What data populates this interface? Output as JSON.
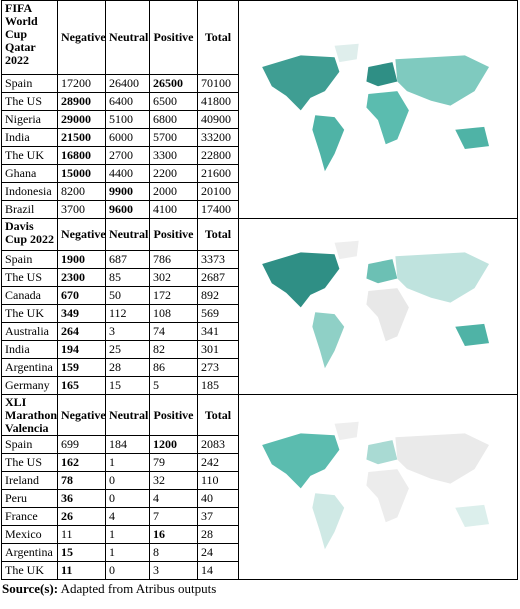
{
  "sections": [
    {
      "title": "FIFA World Cup Qatar 2022",
      "columns": [
        "Negative",
        "Neutral",
        "Positive",
        "Total"
      ],
      "rows": [
        {
          "country": "Spain",
          "values": [
            17200,
            26400,
            26500,
            70100
          ],
          "bold": 2
        },
        {
          "country": "The US",
          "values": [
            28900,
            6400,
            6500,
            41800
          ],
          "bold": 0
        },
        {
          "country": "Nigeria",
          "values": [
            29000,
            5100,
            6800,
            40900
          ],
          "bold": 0
        },
        {
          "country": "India",
          "values": [
            21500,
            6000,
            5700,
            33200
          ],
          "bold": 0
        },
        {
          "country": "The UK",
          "values": [
            16800,
            2700,
            3300,
            22800
          ],
          "bold": 0
        },
        {
          "country": "Ghana",
          "values": [
            15000,
            4400,
            2200,
            21600
          ],
          "bold": 0
        },
        {
          "country": "Indonesia",
          "values": [
            8200,
            9900,
            2000,
            20100
          ],
          "bold": 1
        },
        {
          "country": "Brazil",
          "values": [
            3700,
            9600,
            4100,
            17400
          ],
          "bold": 1
        }
      ]
    },
    {
      "title": "Davis Cup 2022",
      "columns": [
        "Negative",
        "Neutral",
        "Positive",
        "Total"
      ],
      "rows": [
        {
          "country": "Spain",
          "values": [
            1900,
            687,
            786,
            3373
          ],
          "bold": 0
        },
        {
          "country": "The US",
          "values": [
            2300,
            85,
            302,
            2687
          ],
          "bold": 0
        },
        {
          "country": "Canada",
          "values": [
            670,
            50,
            172,
            892
          ],
          "bold": 0
        },
        {
          "country": "The UK",
          "values": [
            349,
            112,
            108,
            569
          ],
          "bold": 0
        },
        {
          "country": "Australia",
          "values": [
            264,
            3,
            74,
            341
          ],
          "bold": 0
        },
        {
          "country": "India",
          "values": [
            194,
            25,
            82,
            301
          ],
          "bold": 0
        },
        {
          "country": "Argentina",
          "values": [
            159,
            28,
            86,
            273
          ],
          "bold": 0
        },
        {
          "country": "Germany",
          "values": [
            165,
            15,
            5,
            185
          ],
          "bold": 0
        }
      ]
    },
    {
      "title": "XLI Marathon Valencia",
      "columns": [
        "Negative",
        "Neutral",
        "Positive",
        "Total"
      ],
      "rows": [
        {
          "country": "Spain",
          "values": [
            699,
            184,
            1200,
            2083
          ],
          "bold": 2
        },
        {
          "country": "The US",
          "values": [
            162,
            1,
            79,
            242
          ],
          "bold": 0
        },
        {
          "country": "Ireland",
          "values": [
            78,
            0,
            32,
            110
          ],
          "bold": 0
        },
        {
          "country": "Peru",
          "values": [
            36,
            0,
            4,
            40
          ],
          "bold": 0
        },
        {
          "country": "France",
          "values": [
            26,
            4,
            7,
            37
          ],
          "bold": 0
        },
        {
          "country": "Mexico",
          "values": [
            11,
            1,
            16,
            28
          ],
          "bold": 2
        },
        {
          "country": "Argentina",
          "values": [
            15,
            1,
            8,
            24
          ],
          "bold": 0
        },
        {
          "country": "The UK",
          "values": [
            11,
            0,
            3,
            14
          ],
          "bold": 0
        }
      ]
    }
  ],
  "source": {
    "label": "Source(s):",
    "text": "Adapted from Atribus outputs"
  }
}
